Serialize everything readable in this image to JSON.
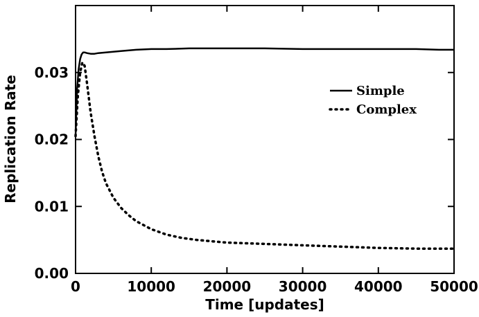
{
  "chart_data": {
    "type": "line",
    "xlabel": "Time [updates]",
    "ylabel": "Replication Rate",
    "xlim": [
      0,
      50000
    ],
    "ylim": [
      0.0,
      0.04
    ],
    "x_ticks": [
      0,
      10000,
      20000,
      30000,
      40000,
      50000
    ],
    "x_tick_labels": [
      "0",
      "10000",
      "20000",
      "30000",
      "40000",
      "50000"
    ],
    "y_ticks": [
      0.0,
      0.01,
      0.02,
      0.03
    ],
    "y_tick_labels": [
      "0.00",
      "0.01",
      "0.02",
      "0.03"
    ],
    "grid": false,
    "legend_position": "right",
    "series": [
      {
        "name": "Simple",
        "style": "solid",
        "x": [
          0,
          200,
          400,
          600,
          800,
          1000,
          1200,
          1500,
          2000,
          2500,
          3000,
          4000,
          5000,
          6000,
          8000,
          10000,
          12000,
          15000,
          18000,
          20000,
          25000,
          30000,
          35000,
          40000,
          45000,
          48000,
          50000
        ],
        "y": [
          0.0205,
          0.0275,
          0.0305,
          0.032,
          0.0327,
          0.033,
          0.033,
          0.0329,
          0.0328,
          0.0328,
          0.0329,
          0.033,
          0.0331,
          0.0332,
          0.0334,
          0.0335,
          0.0335,
          0.0336,
          0.0336,
          0.0336,
          0.0336,
          0.0335,
          0.0335,
          0.0335,
          0.0335,
          0.0334,
          0.0334
        ]
      },
      {
        "name": "Complex",
        "style": "dotted",
        "x": [
          0,
          300,
          600,
          900,
          1200,
          1500,
          2000,
          2500,
          3000,
          3500,
          4000,
          5000,
          6000,
          7000,
          8000,
          10000,
          12000,
          14000,
          16000,
          18000,
          20000,
          25000,
          30000,
          35000,
          40000,
          45000,
          50000
        ],
        "y": [
          0.0205,
          0.0265,
          0.03,
          0.0315,
          0.031,
          0.0285,
          0.024,
          0.0205,
          0.0175,
          0.0152,
          0.0135,
          0.0113,
          0.0098,
          0.0087,
          0.0078,
          0.0066,
          0.0058,
          0.0053,
          0.005,
          0.0048,
          0.0046,
          0.0044,
          0.0042,
          0.004,
          0.0038,
          0.0037,
          0.0037
        ]
      }
    ]
  }
}
